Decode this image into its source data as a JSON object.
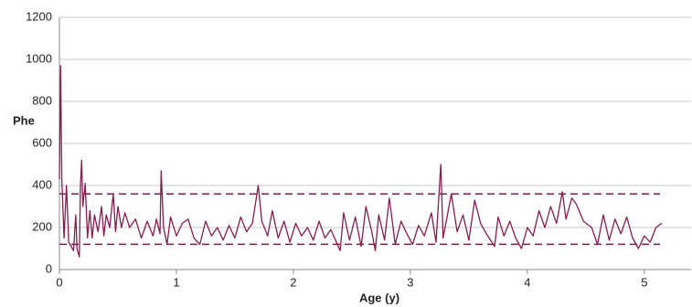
{
  "chart_data": {
    "type": "line",
    "y_label": "Phe",
    "x_label": "Age (y)",
    "xlim": [
      0,
      5.4
    ],
    "xticks": [
      0,
      1,
      2,
      3,
      4,
      5
    ],
    "ylim": [
      0,
      1200
    ],
    "yticks": [
      0,
      200,
      400,
      600,
      800,
      1000,
      1200
    ],
    "grid": true,
    "reference_lines": [
      120,
      360
    ],
    "reference_color": "#7a1f45",
    "series": [
      {
        "color": "#8b1a4f",
        "x": [
          0,
          0.01,
          0.02,
          0.04,
          0.06,
          0.08,
          0.1,
          0.12,
          0.14,
          0.15,
          0.17,
          0.18,
          0.19,
          0.2,
          0.22,
          0.24,
          0.26,
          0.28,
          0.3,
          0.33,
          0.36,
          0.38,
          0.4,
          0.43,
          0.46,
          0.48,
          0.5,
          0.53,
          0.56,
          0.6,
          0.65,
          0.7,
          0.75,
          0.8,
          0.83,
          0.86,
          0.87,
          0.89,
          0.92,
          0.95,
          1.0,
          1.05,
          1.1,
          1.15,
          1.2,
          1.25,
          1.3,
          1.35,
          1.4,
          1.45,
          1.5,
          1.55,
          1.6,
          1.65,
          1.7,
          1.73,
          1.78,
          1.82,
          1.87,
          1.92,
          1.97,
          2.02,
          2.07,
          2.12,
          2.17,
          2.22,
          2.27,
          2.32,
          2.4,
          2.43,
          2.48,
          2.53,
          2.58,
          2.62,
          2.67,
          2.7,
          2.73,
          2.78,
          2.82,
          2.87,
          2.92,
          2.97,
          3.02,
          3.07,
          3.12,
          3.18,
          3.22,
          3.26,
          3.28,
          3.31,
          3.35,
          3.4,
          3.45,
          3.5,
          3.55,
          3.6,
          3.65,
          3.72,
          3.75,
          3.8,
          3.85,
          3.9,
          3.95,
          4.0,
          4.05,
          4.1,
          4.15,
          4.2,
          4.25,
          4.3,
          4.33,
          4.38,
          4.42,
          4.48,
          4.55,
          4.6,
          4.65,
          4.7,
          4.75,
          4.8,
          4.85,
          4.9,
          4.95,
          5.0,
          5.05,
          5.1,
          5.15
        ],
        "values": [
          430,
          970,
          430,
          150,
          400,
          130,
          110,
          90,
          260,
          100,
          60,
          400,
          520,
          300,
          410,
          150,
          280,
          150,
          260,
          180,
          300,
          160,
          260,
          200,
          360,
          180,
          300,
          200,
          270,
          200,
          240,
          150,
          230,
          160,
          240,
          170,
          470,
          200,
          120,
          250,
          160,
          220,
          240,
          150,
          120,
          230,
          160,
          200,
          140,
          210,
          150,
          250,
          180,
          220,
          400,
          230,
          160,
          280,
          150,
          230,
          130,
          220,
          160,
          200,
          140,
          230,
          150,
          190,
          90,
          270,
          140,
          250,
          110,
          300,
          180,
          90,
          260,
          140,
          340,
          120,
          230,
          170,
          120,
          210,
          160,
          270,
          130,
          500,
          150,
          240,
          360,
          180,
          260,
          140,
          330,
          220,
          170,
          110,
          250,
          160,
          230,
          150,
          100,
          200,
          160,
          280,
          200,
          300,
          220,
          370,
          240,
          340,
          310,
          230,
          200,
          120,
          260,
          140,
          240,
          170,
          250,
          150,
          100,
          160,
          130,
          200,
          220
        ]
      }
    ]
  }
}
